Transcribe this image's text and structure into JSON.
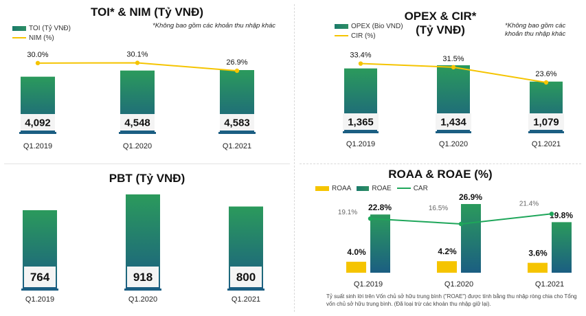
{
  "colors": {
    "bar_top": "#2b9a5c",
    "bar_bottom": "#1b5e82",
    "line_yellow": "#f5c400",
    "line_green": "#1ea65a",
    "roaa_yellow": "#f5c400",
    "divider": "#d9d9d9"
  },
  "footnote": "Tỷ suất sinh lời trên Vốn chủ sở hữu trung bình (\"ROAE\") được tính bằng thu nhập ròng chia cho Tổng vốn chủ sở hữu trung bình. (Đã loại trừ các khoản thu nhập giữ lại).",
  "chart_data": [
    {
      "id": "toi",
      "type": "bar",
      "title": "TOI* & NIM (Tỷ VNĐ)",
      "note": "*Không bao gồm các khoản thu nhập khác",
      "categories": [
        "Q1.2019",
        "Q1.2020",
        "Q1.2021"
      ],
      "series": [
        {
          "name": "TOI (Tỷ VNĐ)",
          "type": "bar",
          "values": [
            4092,
            4548,
            4583
          ],
          "labels": [
            "4,092",
            "4,548",
            "4,583"
          ]
        },
        {
          "name": "NIM (%)",
          "type": "line",
          "values": [
            30.0,
            30.1,
            26.9
          ],
          "labels": [
            "30.0%",
            "30.1%",
            "26.9%"
          ]
        }
      ]
    },
    {
      "id": "opex",
      "type": "bar",
      "title": "OPEX & CIR*\n(Tỷ VNĐ)",
      "note": "*Không bao gồm các khoản thu nhập khác",
      "categories": [
        "Q1.2019",
        "Q1.2020",
        "Q1.2021"
      ],
      "series": [
        {
          "name": "OPEX (Bio VND)",
          "type": "bar",
          "values": [
            1365,
            1434,
            1079
          ],
          "labels": [
            "1,365",
            "1,434",
            "1,079"
          ]
        },
        {
          "name": "CIR (%)",
          "type": "line",
          "values": [
            33.4,
            31.5,
            23.6
          ],
          "labels": [
            "33.4%",
            "31.5%",
            "23.6%"
          ]
        }
      ]
    },
    {
      "id": "pbt",
      "type": "bar",
      "title": "PBT (Tỷ VNĐ)",
      "categories": [
        "Q1.2019",
        "Q1.2020",
        "Q1.2021"
      ],
      "series": [
        {
          "name": "",
          "type": "bar",
          "values": [
            764,
            918,
            800
          ],
          "labels": [
            "764",
            "918",
            "800"
          ]
        }
      ]
    },
    {
      "id": "roaa",
      "type": "bar",
      "title": "ROAA & ROAE (%)",
      "categories": [
        "Q1.2019",
        "Q1.2020",
        "Q1.2021"
      ],
      "series": [
        {
          "name": "ROAA",
          "type": "bar",
          "values": [
            4.0,
            4.2,
            3.6
          ],
          "labels": [
            "4.0%",
            "4.2%",
            "3.6%"
          ]
        },
        {
          "name": "ROAE",
          "type": "bar",
          "values": [
            22.8,
            26.9,
            19.8
          ],
          "labels": [
            "22.8%",
            "26.9%",
            "19.8%"
          ]
        },
        {
          "name": "CAR",
          "type": "line",
          "values": [
            19.1,
            16.5,
            21.4
          ],
          "labels": [
            "19.1%",
            "16.5%",
            "21.4%"
          ]
        }
      ]
    }
  ]
}
